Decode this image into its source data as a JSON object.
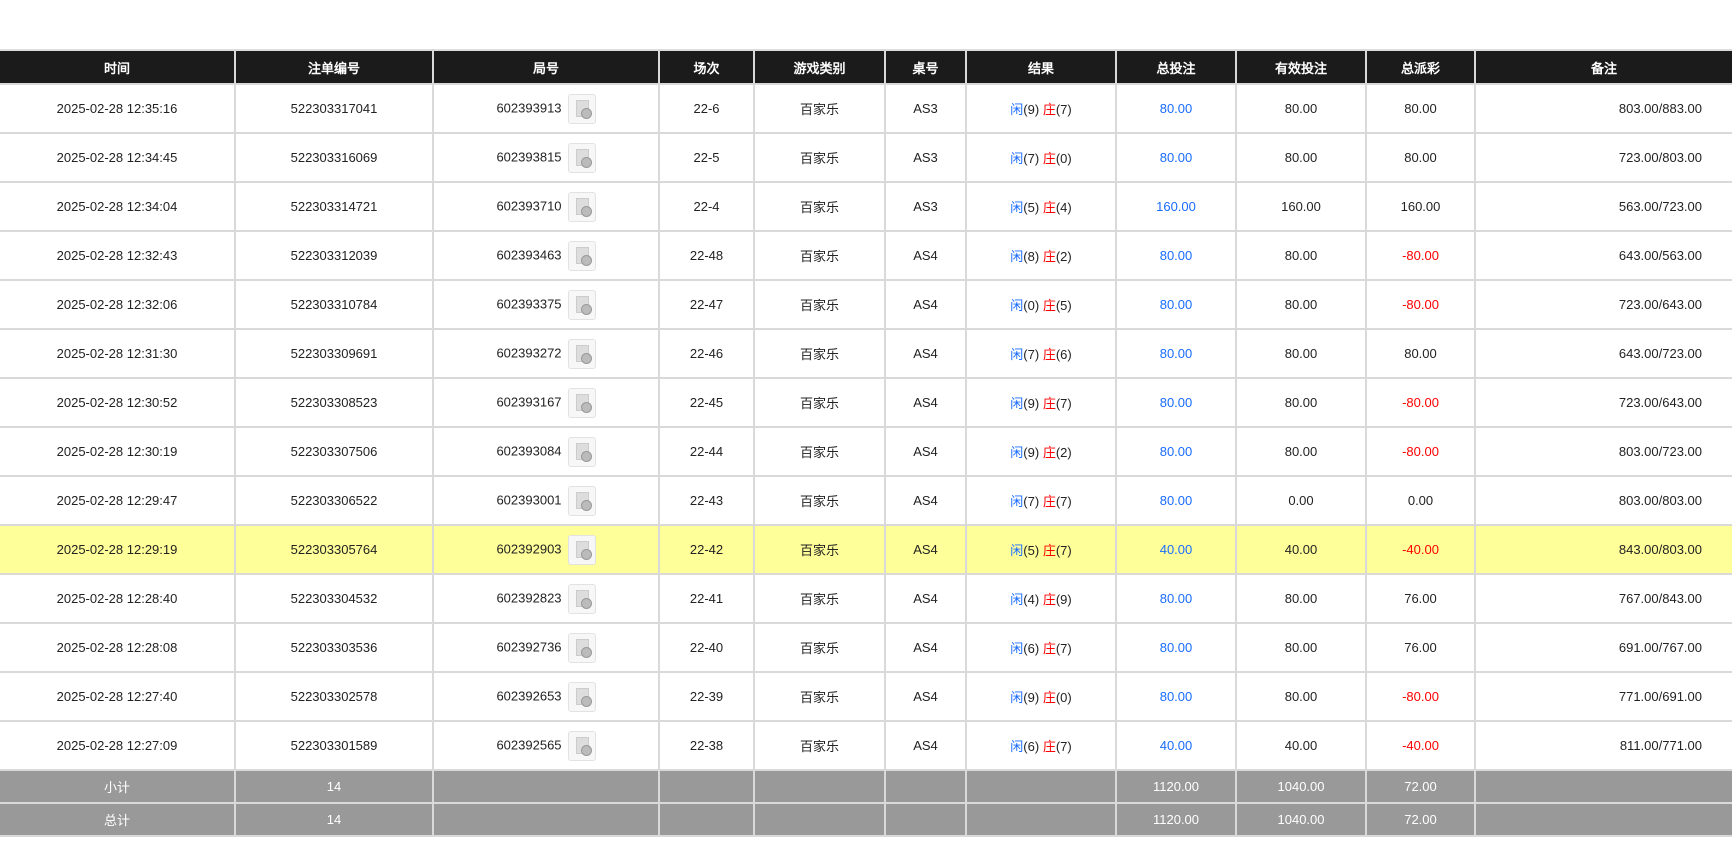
{
  "headers": [
    "时间",
    "注单编号",
    "局号",
    "场次",
    "游戏类别",
    "桌号",
    "结果",
    "总投注",
    "有效投注",
    "总派彩",
    "备注"
  ],
  "result_labels": {
    "player": "闲",
    "banker": "庄"
  },
  "icon": "video-replay-icon",
  "colors": {
    "header_bg": "#1b1b1b",
    "highlight": "#ffff99",
    "blue": "#1a6cff",
    "red": "#ff0000",
    "summary_bg": "#999999"
  },
  "rows": [
    [
      "2025-02-28 12:35:16",
      "522303317041",
      "602393913",
      "22-6",
      "百家乐",
      "AS3",
      "(9)",
      "(7)",
      "80.00",
      "80.00",
      "80.00",
      "803.00/883.00"
    ],
    [
      "2025-02-28 12:34:45",
      "522303316069",
      "602393815",
      "22-5",
      "百家乐",
      "AS3",
      "(7)",
      "(0)",
      "80.00",
      "80.00",
      "80.00",
      "723.00/803.00"
    ],
    [
      "2025-02-28 12:34:04",
      "522303314721",
      "602393710",
      "22-4",
      "百家乐",
      "AS3",
      "(5)",
      "(4)",
      "160.00",
      "160.00",
      "160.00",
      "563.00/723.00"
    ],
    [
      "2025-02-28 12:32:43",
      "522303312039",
      "602393463",
      "22-48",
      "百家乐",
      "AS4",
      "(8)",
      "(2)",
      "80.00",
      "80.00",
      "-80.00",
      "643.00/563.00"
    ],
    [
      "2025-02-28 12:32:06",
      "522303310784",
      "602393375",
      "22-47",
      "百家乐",
      "AS4",
      "(0)",
      "(5)",
      "80.00",
      "80.00",
      "-80.00",
      "723.00/643.00"
    ],
    [
      "2025-02-28 12:31:30",
      "522303309691",
      "602393272",
      "22-46",
      "百家乐",
      "AS4",
      "(7)",
      "(6)",
      "80.00",
      "80.00",
      "80.00",
      "643.00/723.00"
    ],
    [
      "2025-02-28 12:30:52",
      "522303308523",
      "602393167",
      "22-45",
      "百家乐",
      "AS4",
      "(9)",
      "(7)",
      "80.00",
      "80.00",
      "-80.00",
      "723.00/643.00"
    ],
    [
      "2025-02-28 12:30:19",
      "522303307506",
      "602393084",
      "22-44",
      "百家乐",
      "AS4",
      "(9)",
      "(2)",
      "80.00",
      "80.00",
      "-80.00",
      "803.00/723.00"
    ],
    [
      "2025-02-28 12:29:47",
      "522303306522",
      "602393001",
      "22-43",
      "百家乐",
      "AS4",
      "(7)",
      "(7)",
      "80.00",
      "0.00",
      "0.00",
      "803.00/803.00"
    ],
    [
      "2025-02-28 12:29:19",
      "522303305764",
      "602392903",
      "22-42",
      "百家乐",
      "AS4",
      "(5)",
      "(7)",
      "40.00",
      "40.00",
      "-40.00",
      "843.00/803.00"
    ],
    [
      "2025-02-28 12:28:40",
      "522303304532",
      "602392823",
      "22-41",
      "百家乐",
      "AS4",
      "(4)",
      "(9)",
      "80.00",
      "80.00",
      "76.00",
      "767.00/843.00"
    ],
    [
      "2025-02-28 12:28:08",
      "522303303536",
      "602392736",
      "22-40",
      "百家乐",
      "AS4",
      "(6)",
      "(7)",
      "80.00",
      "80.00",
      "76.00",
      "691.00/767.00"
    ],
    [
      "2025-02-28 12:27:40",
      "522303302578",
      "602392653",
      "22-39",
      "百家乐",
      "AS4",
      "(9)",
      "(0)",
      "80.00",
      "80.00",
      "-80.00",
      "771.00/691.00"
    ],
    [
      "2025-02-28 12:27:09",
      "522303301589",
      "602392565",
      "22-38",
      "百家乐",
      "AS4",
      "(6)",
      "(7)",
      "40.00",
      "40.00",
      "-40.00",
      "811.00/771.00"
    ]
  ],
  "highlighted_row": 9,
  "summary": [
    {
      "label": "小计",
      "count": "14",
      "total_bet": "1120.00",
      "valid_bet": "1040.00",
      "payout": "72.00"
    },
    {
      "label": "总计",
      "count": "14",
      "total_bet": "1120.00",
      "valid_bet": "1040.00",
      "payout": "72.00"
    }
  ]
}
